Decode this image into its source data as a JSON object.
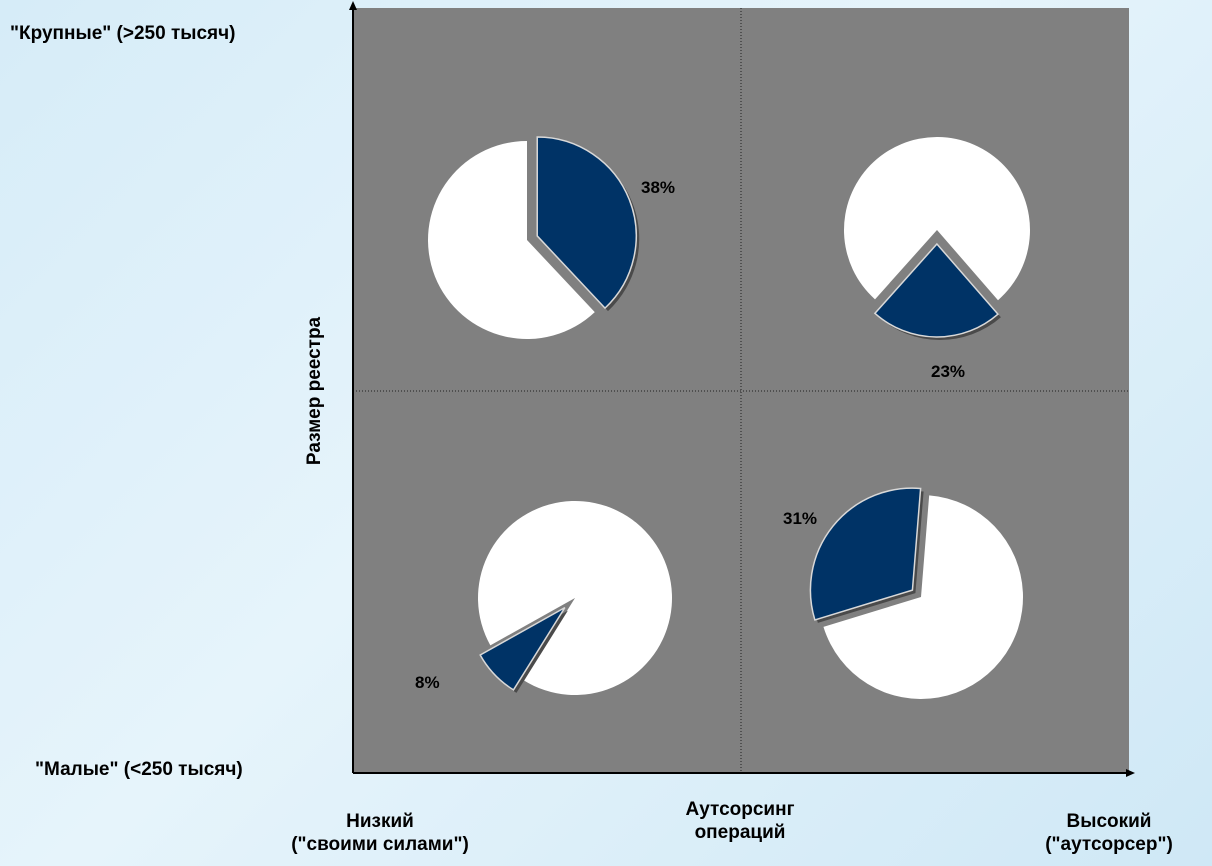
{
  "chart_data": {
    "type": "pie",
    "layout": "2x2 quadrant matrix",
    "colors": {
      "panel": "#808080",
      "highlight": "#003366",
      "remainder": "#ffffff"
    },
    "y_axis": {
      "label": "Размер реестра",
      "top_label": "\"Крупные\" (>250 тысяч)",
      "bottom_label": "\"Малые\" (<250 тысяч)"
    },
    "x_axis": {
      "label_line1": "Аутсорсинг",
      "label_line2": "операций",
      "left_label_line1": "Низкий",
      "left_label_line2": "(\"своими силами\")",
      "right_label_line1": "Высокий",
      "right_label_line2": "(\"аутсорсер\")"
    },
    "quadrants": [
      {
        "position": "top-left",
        "value": 38,
        "label": "38%"
      },
      {
        "position": "top-right",
        "value": 23,
        "label": "23%"
      },
      {
        "position": "bottom-left",
        "value": 8,
        "label": "8%"
      },
      {
        "position": "bottom-right",
        "value": 31,
        "label": "31%"
      }
    ]
  }
}
